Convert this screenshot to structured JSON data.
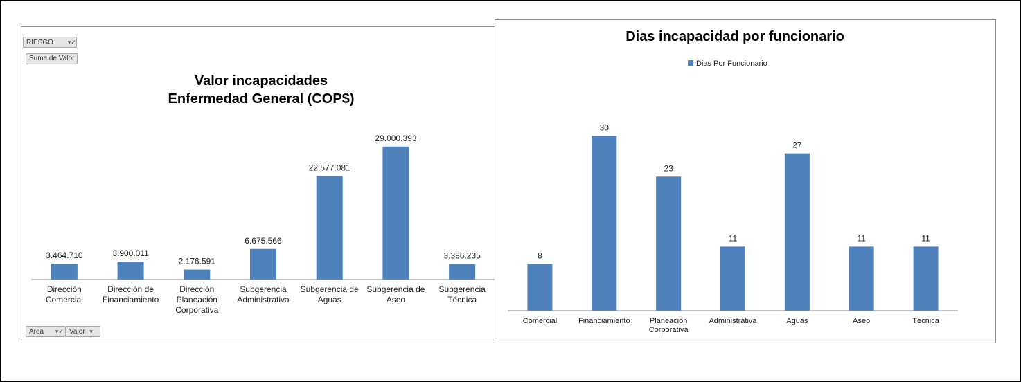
{
  "pivot": {
    "filter_label": "RIESGO",
    "values_label": "Suma de Valor",
    "area_label": "Area",
    "valor_label": "Valor",
    "filter_glyph": "filter-icon",
    "dropdown_glyph": "dropdown-arrow-icon"
  },
  "colors": {
    "bar": "#4f81bd",
    "axis": "#888888",
    "text": "#222222"
  },
  "chart_data": [
    {
      "type": "bar",
      "title": "Valor incapacidades\nEnfermedad General (COP$)",
      "categories": [
        "Dirección\nComercial",
        "Dirección de\nFinanciamiento",
        "Dirección\nPlaneación\nCorporativa",
        "Subgerencia\nAdministrativa",
        "Subgerencia de\nAguas",
        "Subgerencia de\nAseo",
        "Subgerencia\nTécnica"
      ],
      "values": [
        3464710,
        3900011,
        2176591,
        6675566,
        22577081,
        29000393,
        3386235
      ],
      "data_labels": [
        "3.464.710",
        "3.900.011",
        "2.176.591",
        "6.675.566",
        "22.577.081",
        "29.000.393",
        "3.386.235"
      ],
      "ylim": [
        0,
        35000000
      ],
      "grid": false,
      "legend": "none"
    },
    {
      "type": "bar",
      "title": "Dias incapacidad por funcionario",
      "categories": [
        "Comercial",
        "Financiamiento",
        "Planeación\nCorporativa",
        "Administrativa",
        "Aguas",
        "Aseo",
        "Técnica"
      ],
      "series": [
        {
          "name": "Dias Por Funcionario",
          "values": [
            8,
            30,
            23,
            11,
            27,
            11,
            11
          ]
        }
      ],
      "data_labels": [
        "8",
        "30",
        "23",
        "11",
        "27",
        "11",
        "11"
      ],
      "ylim": [
        0,
        38
      ],
      "grid": false,
      "legend": "top"
    }
  ]
}
